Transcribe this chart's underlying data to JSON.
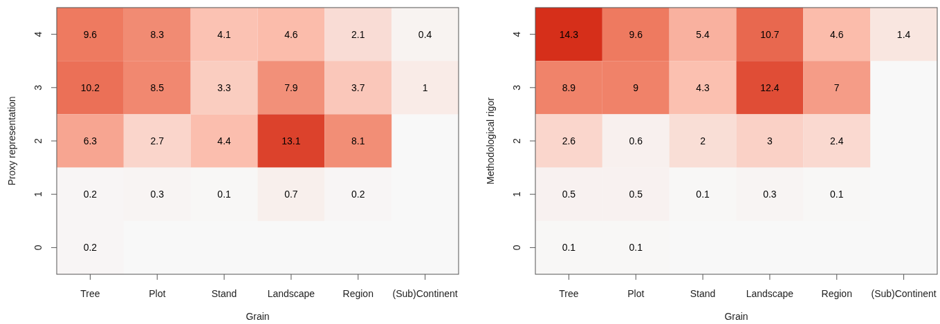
{
  "chart_data": [
    {
      "type": "heatmap",
      "xlabel": "Grain",
      "ylabel": "Proxy representation",
      "data_labels": true,
      "categories": [
        "Tree",
        "Plot",
        "Stand",
        "Landscape",
        "Region",
        "(Sub)Continent"
      ],
      "y_categories": [
        "4",
        "3",
        "2",
        "1",
        "0"
      ],
      "cells": [
        [
          9.6,
          8.3,
          4.1,
          4.6,
          2.1,
          0.4
        ],
        [
          10.2,
          8.5,
          3.3,
          7.9,
          3.7,
          1
        ],
        [
          6.3,
          2.7,
          4.4,
          13.1,
          8.1,
          null
        ],
        [
          0.2,
          0.3,
          0.1,
          0.7,
          0.2,
          null
        ],
        [
          0.2,
          null,
          null,
          null,
          null,
          null
        ]
      ]
    },
    {
      "type": "heatmap",
      "xlabel": "Grain",
      "ylabel": "Methodological rigor",
      "data_labels": true,
      "categories": [
        "Tree",
        "Plot",
        "Stand",
        "Landscape",
        "Region",
        "(Sub)Continent"
      ],
      "y_categories": [
        "4",
        "3",
        "2",
        "1",
        "0"
      ],
      "cells": [
        [
          14.3,
          9.6,
          5.4,
          10.7,
          4.6,
          1.4
        ],
        [
          8.9,
          9,
          4.3,
          12.4,
          7,
          null
        ],
        [
          2.6,
          0.6,
          2,
          3,
          2.4,
          null
        ],
        [
          0.5,
          0.5,
          0.1,
          0.3,
          0.1,
          null
        ],
        [
          0.1,
          0.1,
          null,
          null,
          null,
          null
        ]
      ]
    }
  ]
}
